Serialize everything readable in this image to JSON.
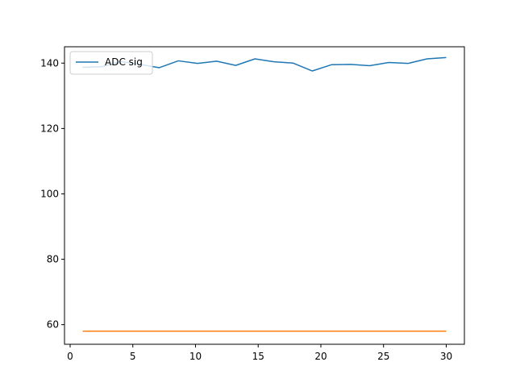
{
  "chart_data": {
    "type": "line",
    "title": "",
    "xlabel": "",
    "ylabel": "",
    "xlim": [
      -0.45,
      31.45
    ],
    "ylim": [
      54,
      145
    ],
    "xticks": [
      0,
      5,
      10,
      15,
      20,
      25,
      30
    ],
    "yticks": [
      60,
      80,
      100,
      120,
      140
    ],
    "grid": false,
    "legend": {
      "position": "top-left",
      "entries": [
        "ADC sig"
      ]
    },
    "series": [
      {
        "name": "ADC sig",
        "color": "#1f77b4",
        "x": [
          1,
          2.53,
          4.05,
          5.58,
          7.11,
          8.63,
          10.16,
          11.68,
          13.21,
          14.74,
          16.26,
          17.79,
          19.32,
          20.84,
          22.37,
          23.89,
          25.42,
          26.95,
          28.47,
          30
        ],
        "y": [
          138.7,
          138.9,
          140.5,
          139.6,
          138.6,
          140.7,
          139.9,
          140.6,
          139.3,
          141.3,
          140.4,
          140.0,
          137.6,
          139.5,
          139.6,
          139.2,
          140.2,
          139.9,
          141.3,
          141.7
        ]
      },
      {
        "color": "#ff7f0e",
        "x": [
          1,
          30
        ],
        "y": [
          58,
          58
        ]
      }
    ]
  }
}
